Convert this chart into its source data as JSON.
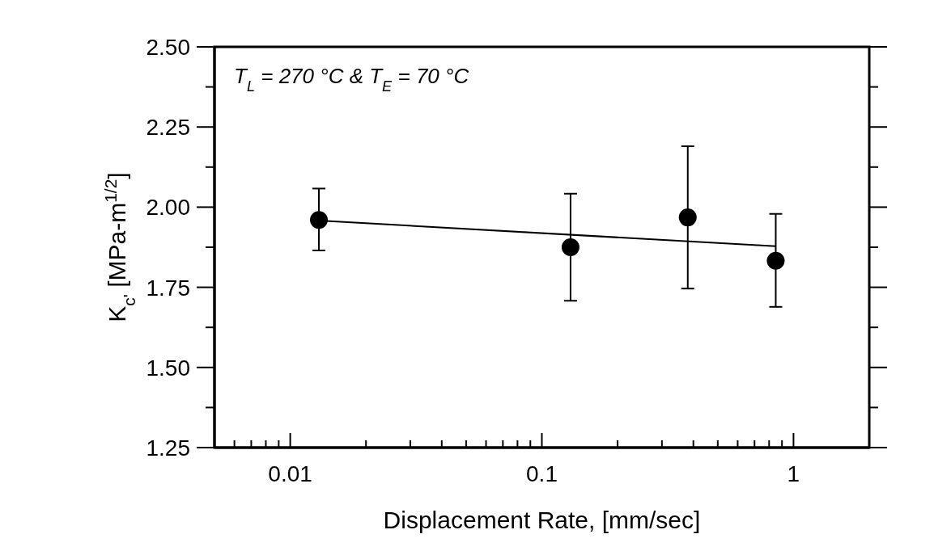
{
  "chart_data": {
    "type": "scatter",
    "xlabel": "Displacement Rate, [mm/sec]",
    "ylabel": "K$_{c'}$ [MPa-m$^{1/2}$]",
    "annotations": [
      "T$_{L}$ = 270 °C & T$_{E}$ = 70 °C"
    ],
    "log": "x",
    "grid": false,
    "xlim": [
      0.005,
      2
    ],
    "xticks": [
      {
        "value": 0.006,
        "label": null
      },
      {
        "value": 0.007,
        "label": null
      },
      {
        "value": 0.008,
        "label": null
      },
      {
        "value": 0.009,
        "label": null
      },
      0.01,
      {
        "value": 0.02,
        "label": null
      },
      {
        "value": 0.03,
        "label": null
      },
      {
        "value": 0.04,
        "label": null
      },
      {
        "value": 0.05,
        "label": null
      },
      {
        "value": 0.06,
        "label": null
      },
      {
        "value": 0.07,
        "label": null
      },
      {
        "value": 0.08,
        "label": null
      },
      {
        "value": 0.09,
        "label": null
      },
      0.1,
      {
        "value": 0.2,
        "label": null
      },
      {
        "value": 0.3,
        "label": null
      },
      {
        "value": 0.4,
        "label": null
      },
      {
        "value": 0.5,
        "label": null
      },
      {
        "value": 0.6,
        "label": null
      },
      {
        "value": 0.7,
        "label": null
      },
      {
        "value": 0.8,
        "label": null
      },
      {
        "value": 0.9,
        "label": null
      },
      1
    ],
    "ylim": [
      1.25,
      2.5
    ],
    "yticks": [
      {
        "value": 1.25,
        "label": "1.25"
      },
      {
        "value": 1.375,
        "label": null
      },
      {
        "value": 1.5,
        "label": "1.50"
      },
      {
        "value": 1.625,
        "label": null
      },
      {
        "value": 1.75,
        "label": "1.75"
      },
      {
        "value": 1.875,
        "label": null
      },
      {
        "value": 2,
        "label": "2.00"
      },
      {
        "value": 2.125,
        "label": null
      },
      {
        "value": 2.25,
        "label": "2.25"
      },
      {
        "value": 2.375,
        "label": null
      },
      {
        "value": 2.5,
        "label": "2.50"
      }
    ],
    "series": [
      {
        "type": "scatter",
        "color": "#000000",
        "marker": "circle",
        "x": [
          0.013,
          0.13,
          0.38,
          0.85
        ],
        "values": [
          1.96,
          1.875,
          1.968,
          1.833
        ],
        "errors": [
          [
            1.865,
            2.058
          ],
          [
            1.708,
            2.042
          ],
          [
            1.746,
            2.19
          ],
          [
            1.689,
            1.979
          ]
        ]
      },
      {
        "type": "line",
        "color": "#000000",
        "marker": "none",
        "line_style": "solid",
        "x": [
          0.013,
          0.85
        ],
        "values": [
          1.958,
          1.878
        ]
      }
    ]
  }
}
